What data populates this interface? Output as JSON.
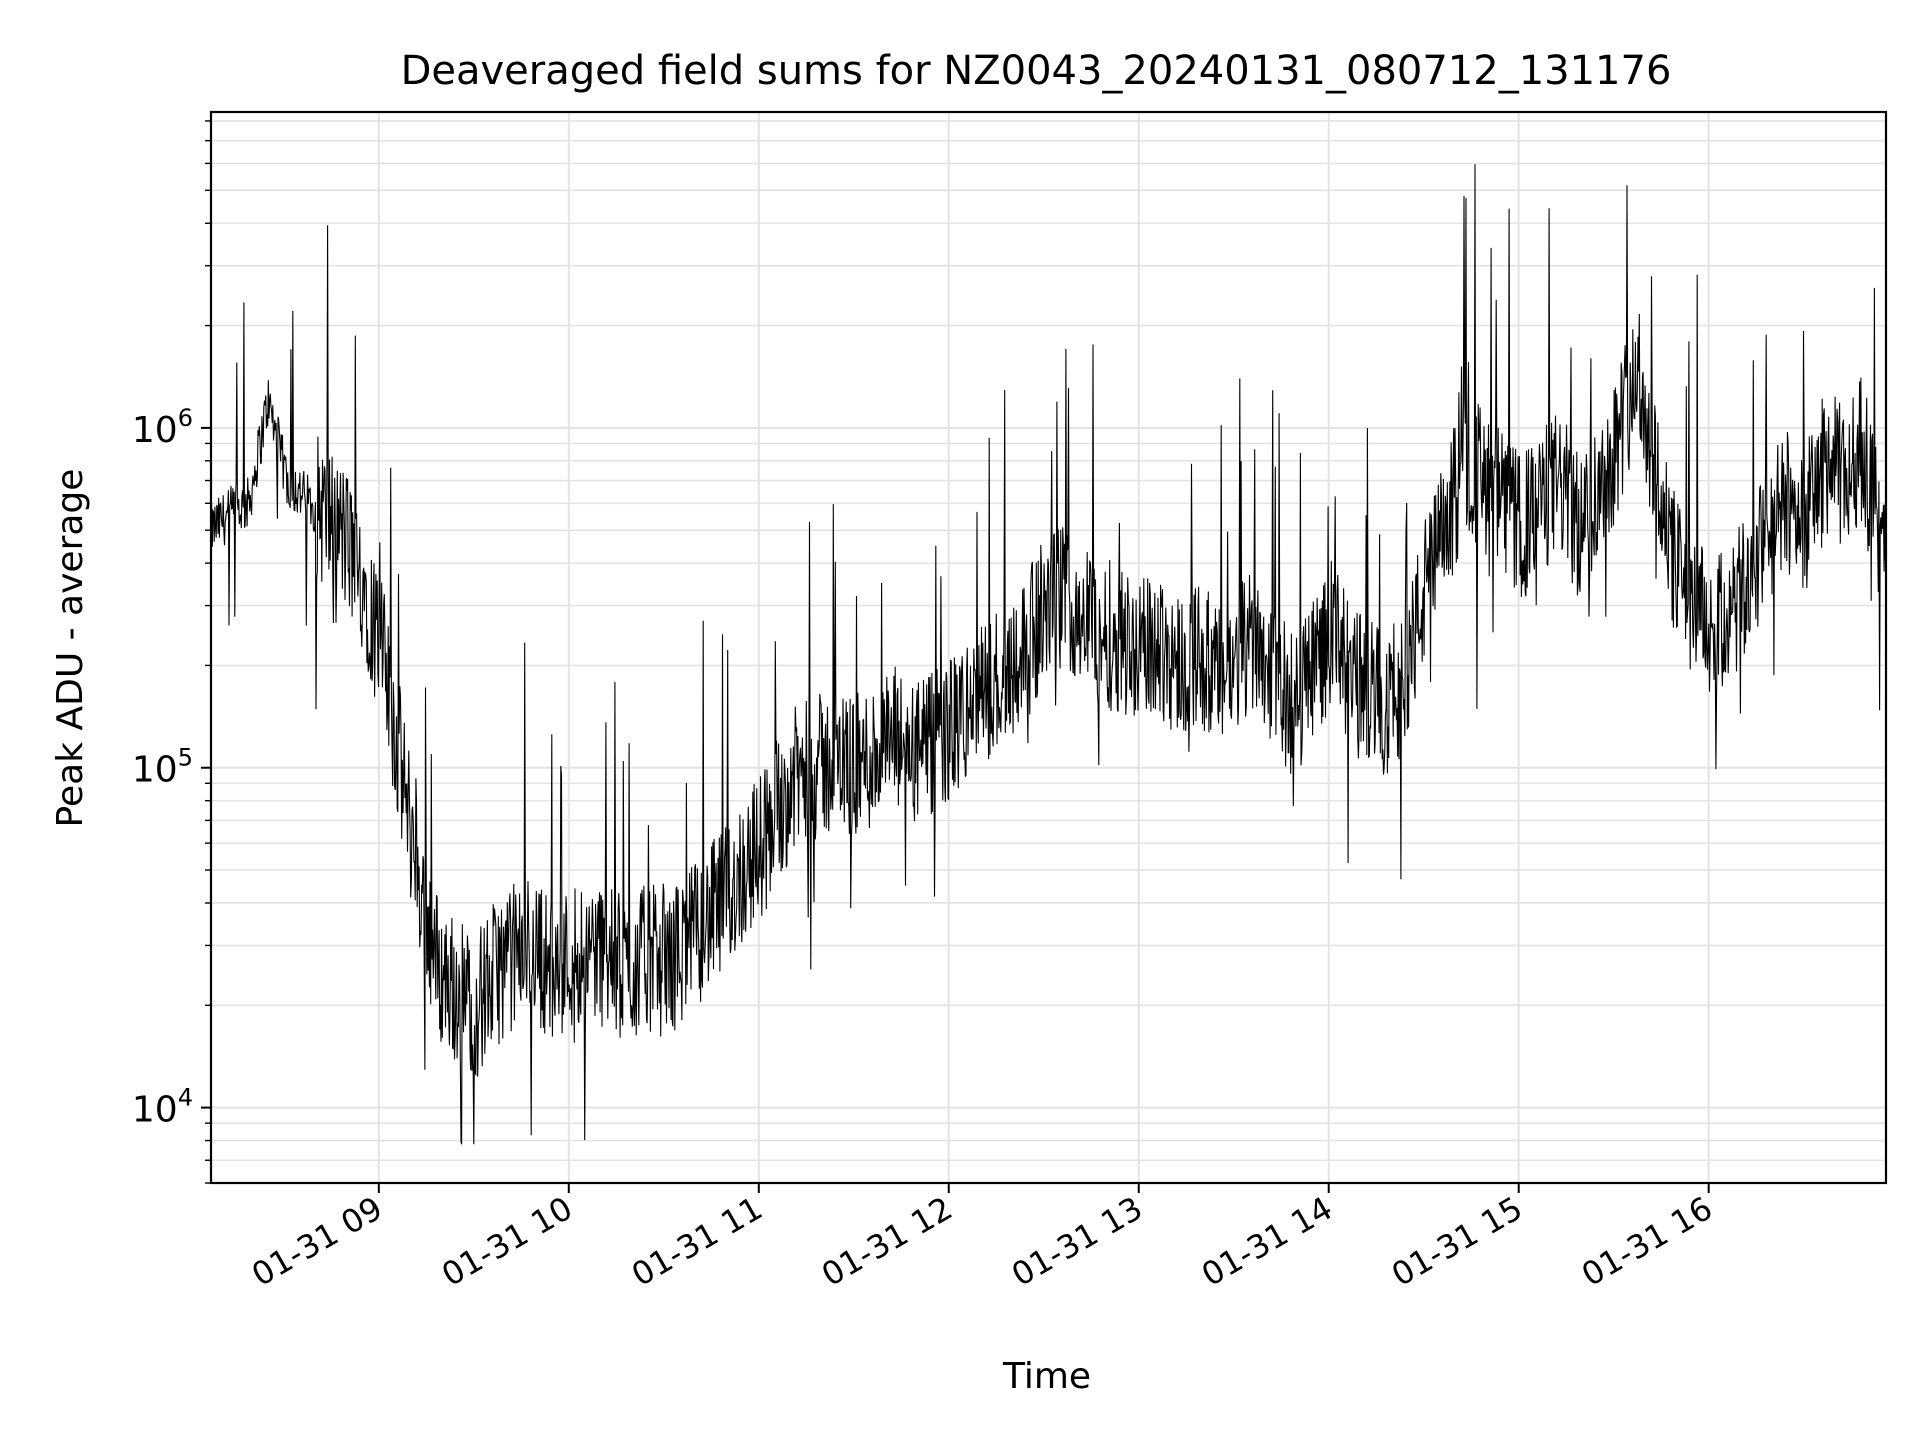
{
  "chart_data": {
    "type": "line",
    "title": "Deaveraged field sums for NZ0043_20240131_080712_131176",
    "xlabel": "Time",
    "ylabel": "Peak ADU - average",
    "x_scale": "time",
    "y_scale": "log",
    "xlim": [
      "2024-01-31 08:07",
      "2024-01-31 16:56"
    ],
    "ylim": [
      6000,
      8500000
    ],
    "x_ticks": [
      "01-31 09",
      "01-31 10",
      "01-31 11",
      "01-31 12",
      "01-31 13",
      "01-31 14",
      "01-31 15",
      "01-31 16"
    ],
    "y_ticks": [
      {
        "value": 10000,
        "base": "10",
        "exp": "4"
      },
      {
        "value": 100000,
        "base": "10",
        "exp": "5"
      },
      {
        "value": 1000000,
        "base": "10",
        "exp": "6"
      }
    ],
    "grid": true,
    "line_color": "#000000",
    "grid_color": "#e3e3e3",
    "series": [
      {
        "x": [
          "08:07",
          "08:13",
          "08:19",
          "08:25",
          "08:31",
          "08:37",
          "08:43",
          "08:49",
          "08:55",
          "09:01",
          "09:07",
          "09:13",
          "09:19",
          "09:25",
          "09:31",
          "09:37",
          "09:43",
          "09:49",
          "09:55",
          "10:01",
          "10:07",
          "10:13",
          "10:19",
          "10:25",
          "10:31",
          "10:37",
          "10:43",
          "10:49",
          "10:55",
          "11:01",
          "11:07",
          "11:13",
          "11:19",
          "11:25",
          "11:31",
          "11:37",
          "11:43",
          "11:49",
          "11:55",
          "12:01",
          "12:07",
          "12:13",
          "12:19",
          "12:25",
          "12:31",
          "12:37",
          "12:43",
          "12:49",
          "12:55",
          "13:01",
          "13:07",
          "13:13",
          "13:19",
          "13:25",
          "13:31",
          "13:37",
          "13:43",
          "13:49",
          "13:55",
          "14:01",
          "14:07",
          "14:13",
          "14:19",
          "14:25",
          "14:31",
          "14:37",
          "14:43",
          "14:49",
          "14:55",
          "15:01",
          "15:07",
          "15:13",
          "15:19",
          "15:25",
          "15:31",
          "15:37",
          "15:43",
          "15:49",
          "15:55",
          "16:01",
          "16:07",
          "16:13",
          "16:19",
          "16:25",
          "16:31",
          "16:37",
          "16:43",
          "16:49",
          "16:55"
        ],
        "y": [
          500000,
          560000,
          600000,
          1200000,
          700000,
          620000,
          560000,
          480000,
          360000,
          220000,
          100000,
          45000,
          25000,
          22000,
          20000,
          25000,
          28000,
          30000,
          25000,
          28000,
          30000,
          27000,
          25000,
          28000,
          26000,
          30000,
          35000,
          40000,
          50000,
          60000,
          80000,
          95000,
          100000,
          105000,
          100000,
          110000,
          120000,
          110000,
          115000,
          130000,
          150000,
          170000,
          200000,
          230000,
          300000,
          320000,
          280000,
          250000,
          240000,
          220000,
          230000,
          200000,
          220000,
          180000,
          200000,
          250000,
          180000,
          150000,
          200000,
          250000,
          180000,
          170000,
          150000,
          200000,
          350000,
          500000,
          800000,
          700000,
          600000,
          500000,
          600000,
          700000,
          500000,
          650000,
          900000,
          1500000,
          800000,
          400000,
          300000,
          250000,
          280000,
          350000,
          500000,
          600000,
          550000,
          800000,
          700000,
          900000,
          400000
        ]
      }
    ]
  }
}
